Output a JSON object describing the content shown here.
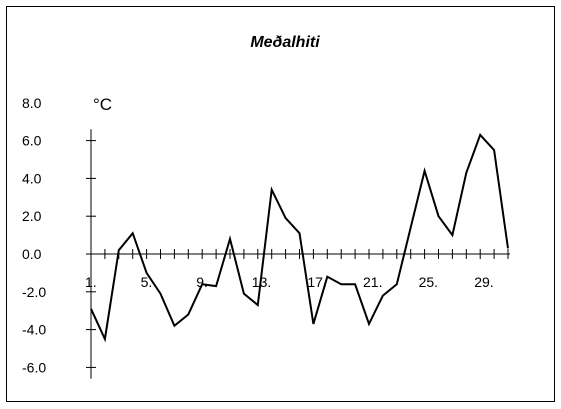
{
  "chart_data": {
    "type": "line",
    "title": "Meðalhiti",
    "ylabel": "°C",
    "xlabel": "",
    "ylim": [
      -6,
      8
    ],
    "yticks": [
      8,
      6,
      4,
      2,
      0,
      -2,
      -4,
      -6
    ],
    "ytick_labels": [
      "8.0",
      "6.0",
      "4.0",
      "2.0",
      "0.0",
      "-2.0",
      "-4.0",
      "-6.0"
    ],
    "x_tick_labels": [
      {
        "day": 1,
        "label": "1."
      },
      {
        "day": 5,
        "label": "5."
      },
      {
        "day": 9,
        "label": "9."
      },
      {
        "day": 13,
        "label": "13."
      },
      {
        "day": 17,
        "label": "17."
      },
      {
        "day": 21,
        "label": "21."
      },
      {
        "day": 25,
        "label": "25."
      },
      {
        "day": 29,
        "label": "29."
      }
    ],
    "x": [
      1,
      2,
      3,
      4,
      5,
      6,
      7,
      8,
      9,
      10,
      11,
      12,
      13,
      14,
      15,
      16,
      17,
      18,
      19,
      20,
      21,
      22,
      23,
      24,
      25,
      26,
      27,
      28,
      29,
      30,
      31
    ],
    "series": [
      {
        "values": [
          -2.9,
          -4.5,
          0.2,
          1.1,
          -1.0,
          -2.1,
          -3.8,
          -3.2,
          -1.6,
          -1.7,
          0.8,
          -2.1,
          -2.7,
          3.4,
          1.9,
          1.1,
          -3.7,
          -1.2,
          -1.6,
          -1.6,
          -3.7,
          -2.2,
          -1.6,
          1.4,
          4.4,
          2.0,
          1.0,
          4.3,
          6.3,
          5.5,
          0.3
        ],
        "color": "#000000"
      }
    ],
    "grid": false,
    "legend": "none"
  }
}
